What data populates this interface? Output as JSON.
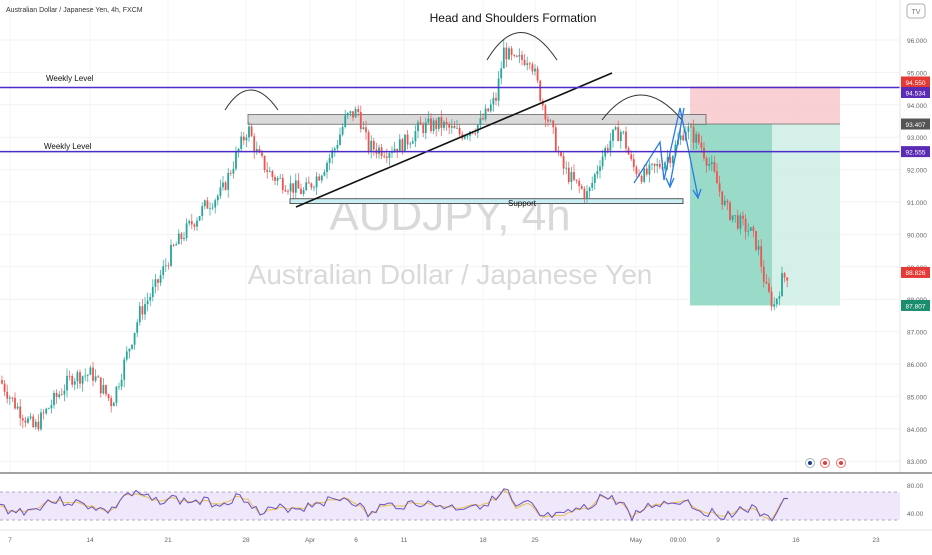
{
  "header": {
    "symbol_line": "Australian Dollar / Japanese Yen, 4h, FXCM",
    "title": "Head and Shoulders Formation",
    "logo_text": "TV"
  },
  "watermark": {
    "ticker": "AUDJPY, 4h",
    "name": "Australian Dollar / Japanese Yen"
  },
  "annotations": {
    "weekly_level_1": "Weekly Level",
    "weekly_level_2": "Weekly Level",
    "support": "Support"
  },
  "price_axis": {
    "ticks": [
      "96.000",
      "95.000",
      "94.000",
      "93.000",
      "92.000",
      "91.000",
      "90.000",
      "89.000",
      "88.000",
      "87.000",
      "86.000",
      "85.000",
      "84.000",
      "83.000"
    ],
    "badges": [
      {
        "label": "94.550",
        "price": 94.55,
        "color": "#e53935"
      },
      {
        "label": "94.534",
        "price": 94.534,
        "color": "#5b2bb5"
      },
      {
        "label": "93.407",
        "price": 93.407,
        "color": "#555555"
      },
      {
        "label": "92.555",
        "price": 92.555,
        "color": "#5b2bb5"
      },
      {
        "label": "88.826",
        "price": 88.826,
        "color": "#e53935"
      },
      {
        "label": "87.807",
        "price": 87.807,
        "color": "#1b8c6e"
      }
    ]
  },
  "rsi_axis": {
    "ticks": [
      "80.00",
      "40.00"
    ]
  },
  "time_axis": {
    "labels": [
      "7",
      "14",
      "21",
      "28",
      "Apr",
      "6",
      "11",
      "18",
      "25",
      "May",
      "09:00",
      "9",
      "16",
      "23"
    ]
  },
  "chart_data": {
    "type": "candlestick",
    "symbol": "AUDJPY",
    "timeframe": "4h",
    "ylim": [
      82.6,
      96.3
    ],
    "levels": {
      "weekly_level_upper": 94.534,
      "weekly_level_lower": 92.555,
      "neckline_zone": [
        93.4,
        93.7
      ],
      "support_zone": [
        90.95,
        91.1
      ]
    },
    "position": {
      "entry": 93.407,
      "stop": 94.55,
      "target": 87.807,
      "current": 88.826
    },
    "rsi_levels": [
      80,
      40
    ],
    "path": [
      [
        0,
        85.5
      ],
      [
        14,
        84.8
      ],
      [
        34,
        84.0
      ],
      [
        52,
        84.8
      ],
      [
        72,
        85.6
      ],
      [
        92,
        85.7
      ],
      [
        112,
        84.8
      ],
      [
        126,
        86.2
      ],
      [
        140,
        87.6
      ],
      [
        156,
        88.4
      ],
      [
        172,
        89.5
      ],
      [
        188,
        90.2
      ],
      [
        206,
        90.9
      ],
      [
        222,
        91.3
      ],
      [
        236,
        92.4
      ],
      [
        248,
        93.3
      ],
      [
        258,
        92.4
      ],
      [
        272,
        91.8
      ],
      [
        290,
        91.5
      ],
      [
        304,
        91.3
      ],
      [
        320,
        91.9
      ],
      [
        334,
        92.6
      ],
      [
        346,
        93.6
      ],
      [
        358,
        93.8
      ],
      [
        368,
        92.7
      ],
      [
        386,
        92.6
      ],
      [
        404,
        92.8
      ],
      [
        420,
        93.3
      ],
      [
        440,
        93.4
      ],
      [
        460,
        93.1
      ],
      [
        480,
        93.4
      ],
      [
        496,
        94.2
      ],
      [
        504,
        95.7
      ],
      [
        514,
        95.3
      ],
      [
        530,
        95.5
      ],
      [
        542,
        94.1
      ],
      [
        552,
        93.2
      ],
      [
        562,
        92.1
      ],
      [
        574,
        91.6
      ],
      [
        588,
        91.2
      ],
      [
        600,
        92.3
      ],
      [
        612,
        93.0
      ],
      [
        622,
        93.2
      ],
      [
        632,
        92.1
      ],
      [
        644,
        91.8
      ],
      [
        658,
        92.1
      ],
      [
        672,
        92.5
      ],
      [
        686,
        93.3
      ],
      [
        700,
        92.8
      ],
      [
        712,
        92.0
      ],
      [
        726,
        90.8
      ],
      [
        738,
        90.4
      ],
      [
        750,
        90.1
      ],
      [
        758,
        89.6
      ],
      [
        766,
        88.3
      ],
      [
        774,
        87.8
      ],
      [
        782,
        88.6
      ],
      [
        788,
        88.8
      ]
    ]
  }
}
